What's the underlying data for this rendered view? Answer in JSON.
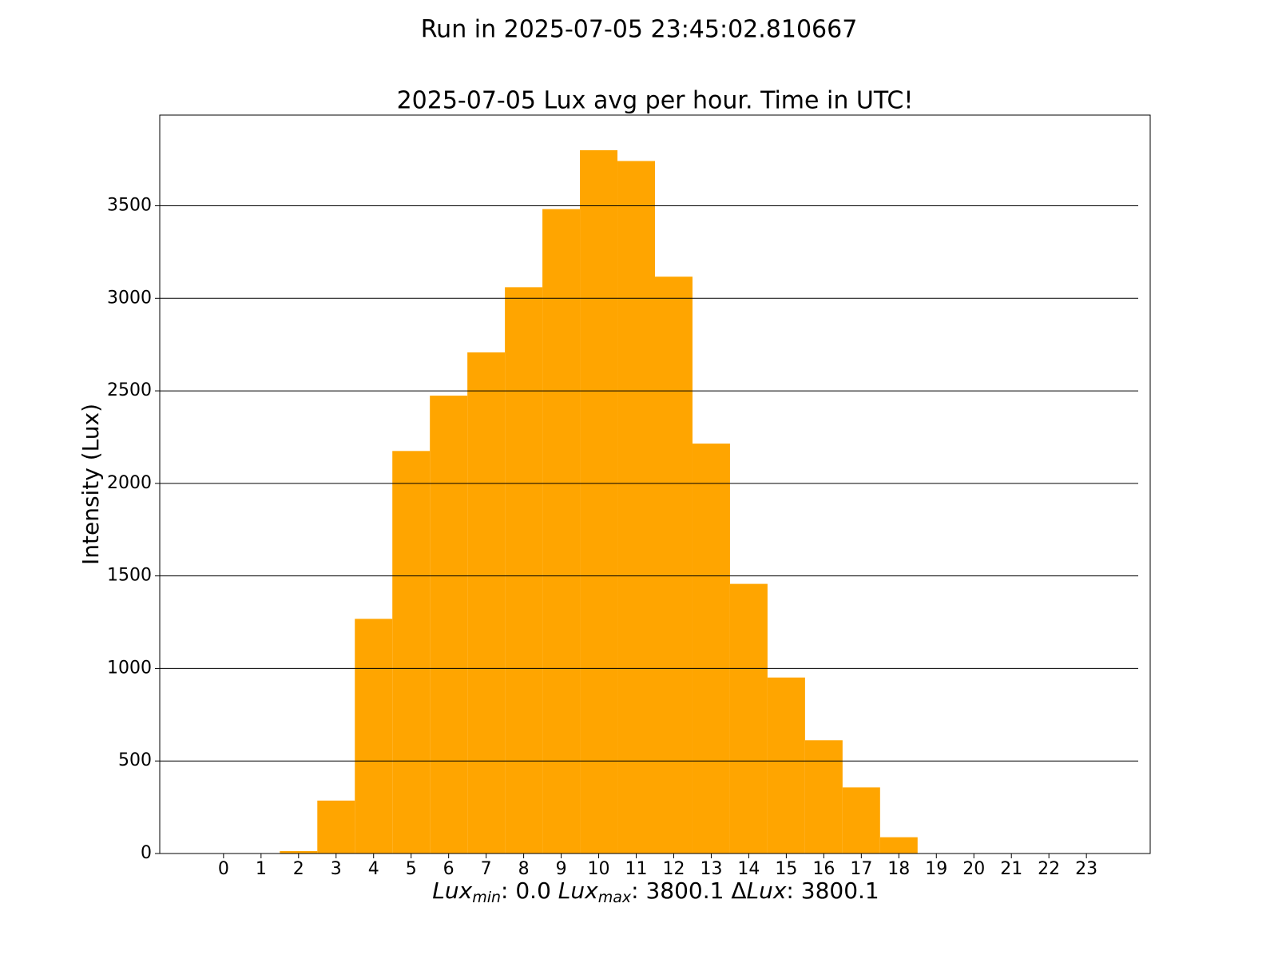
{
  "chart_data": {
    "type": "bar",
    "suptitle": "Run in 2025-07-05 23:45:02.810667",
    "title": "2025-07-05 Lux avg per hour. Time in UTC!",
    "ylabel": "Intensity (Lux)",
    "xlabel": [
      {
        "text": "Lux",
        "style": "italic"
      },
      {
        "text": "min",
        "style": "sub"
      },
      {
        "text": ": 0.0   ",
        "style": "normal"
      },
      {
        "text": "Lux",
        "style": "italic"
      },
      {
        "text": "max",
        "style": "sub"
      },
      {
        "text": ": 3800.1   ",
        "style": "normal"
      },
      {
        "text": "Δ",
        "style": "normal"
      },
      {
        "text": "Lux",
        "style": "italic"
      },
      {
        "text": ": 3800.1",
        "style": "normal"
      }
    ],
    "x": [
      0,
      1,
      2,
      3,
      4,
      5,
      6,
      7,
      8,
      9,
      10,
      11,
      12,
      13,
      14,
      15,
      16,
      17,
      18,
      19,
      20,
      21,
      22,
      23
    ],
    "values": [
      0,
      0,
      13,
      286,
      1268,
      2175,
      2474,
      2708,
      3060,
      3482,
      3800.1,
      3742,
      3117,
      2215,
      1457,
      951,
      612,
      357,
      88,
      0,
      0,
      0,
      0,
      0
    ],
    "color": "#ffa500",
    "xlim": [
      -1.7,
      24.7
    ],
    "xticks": [
      0,
      1,
      2,
      3,
      4,
      5,
      6,
      7,
      8,
      9,
      10,
      11,
      12,
      13,
      14,
      15,
      16,
      17,
      18,
      19,
      20,
      21,
      22,
      23
    ],
    "ylim": [
      0,
      3990.1
    ],
    "yticks": [
      0,
      500,
      1000,
      1500,
      2000,
      2500,
      3000,
      3500
    ],
    "grid": true
  }
}
